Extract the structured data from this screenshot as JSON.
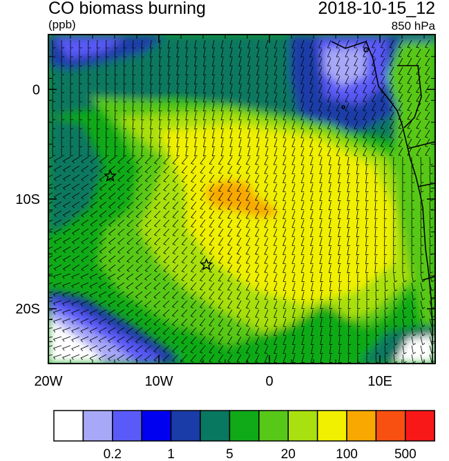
{
  "header": {
    "title": "CO biomass burning",
    "units": "(ppb)",
    "datetime": "2018-10-15_12",
    "level": "850 hPa"
  },
  "map": {
    "lon_range": [
      -20,
      15
    ],
    "lat_range": [
      -25,
      5
    ],
    "lon_ticks": [
      {
        "value": -20,
        "label": "20W"
      },
      {
        "value": -10,
        "label": "10W"
      },
      {
        "value": 0,
        "label": "0"
      },
      {
        "value": 10,
        "label": "10E"
      }
    ],
    "lat_ticks": [
      {
        "value": 0,
        "label": "0"
      },
      {
        "value": -10,
        "label": "10S"
      },
      {
        "value": -20,
        "label": "20S"
      }
    ],
    "stations": [
      {
        "lon": -14.4,
        "lat": -7.9
      },
      {
        "lon": -5.7,
        "lat": -16.0
      }
    ]
  },
  "colorbar": {
    "colors": [
      "#ffffff",
      "#a8a8f8",
      "#5a5af8",
      "#0000f0",
      "#1a3ca8",
      "#087860",
      "#10aa18",
      "#58c818",
      "#a8e010",
      "#f0f000",
      "#f8a800",
      "#f85010",
      "#f81818"
    ],
    "labels": [
      {
        "after_box": 2,
        "text": "0.2"
      },
      {
        "after_box": 4,
        "text": "1"
      },
      {
        "after_box": 6,
        "text": "5"
      },
      {
        "after_box": 8,
        "text": "20"
      },
      {
        "after_box": 10,
        "text": "100"
      },
      {
        "after_box": 12,
        "text": "500"
      }
    ]
  },
  "palette": {
    "white": "#ffffff",
    "lavender": "#a8a8f8",
    "periwinkle": "#5a5af8",
    "blue": "#0000f0",
    "navy": "#1a3ca8",
    "teal": "#087860",
    "green": "#10aa18",
    "lime": "#58c818",
    "yellowgreen": "#a8e010",
    "yellow": "#f0f000",
    "orange": "#f8a800",
    "darkorange": "#f85010",
    "red": "#f81818",
    "land": "#c8c8c8"
  }
}
